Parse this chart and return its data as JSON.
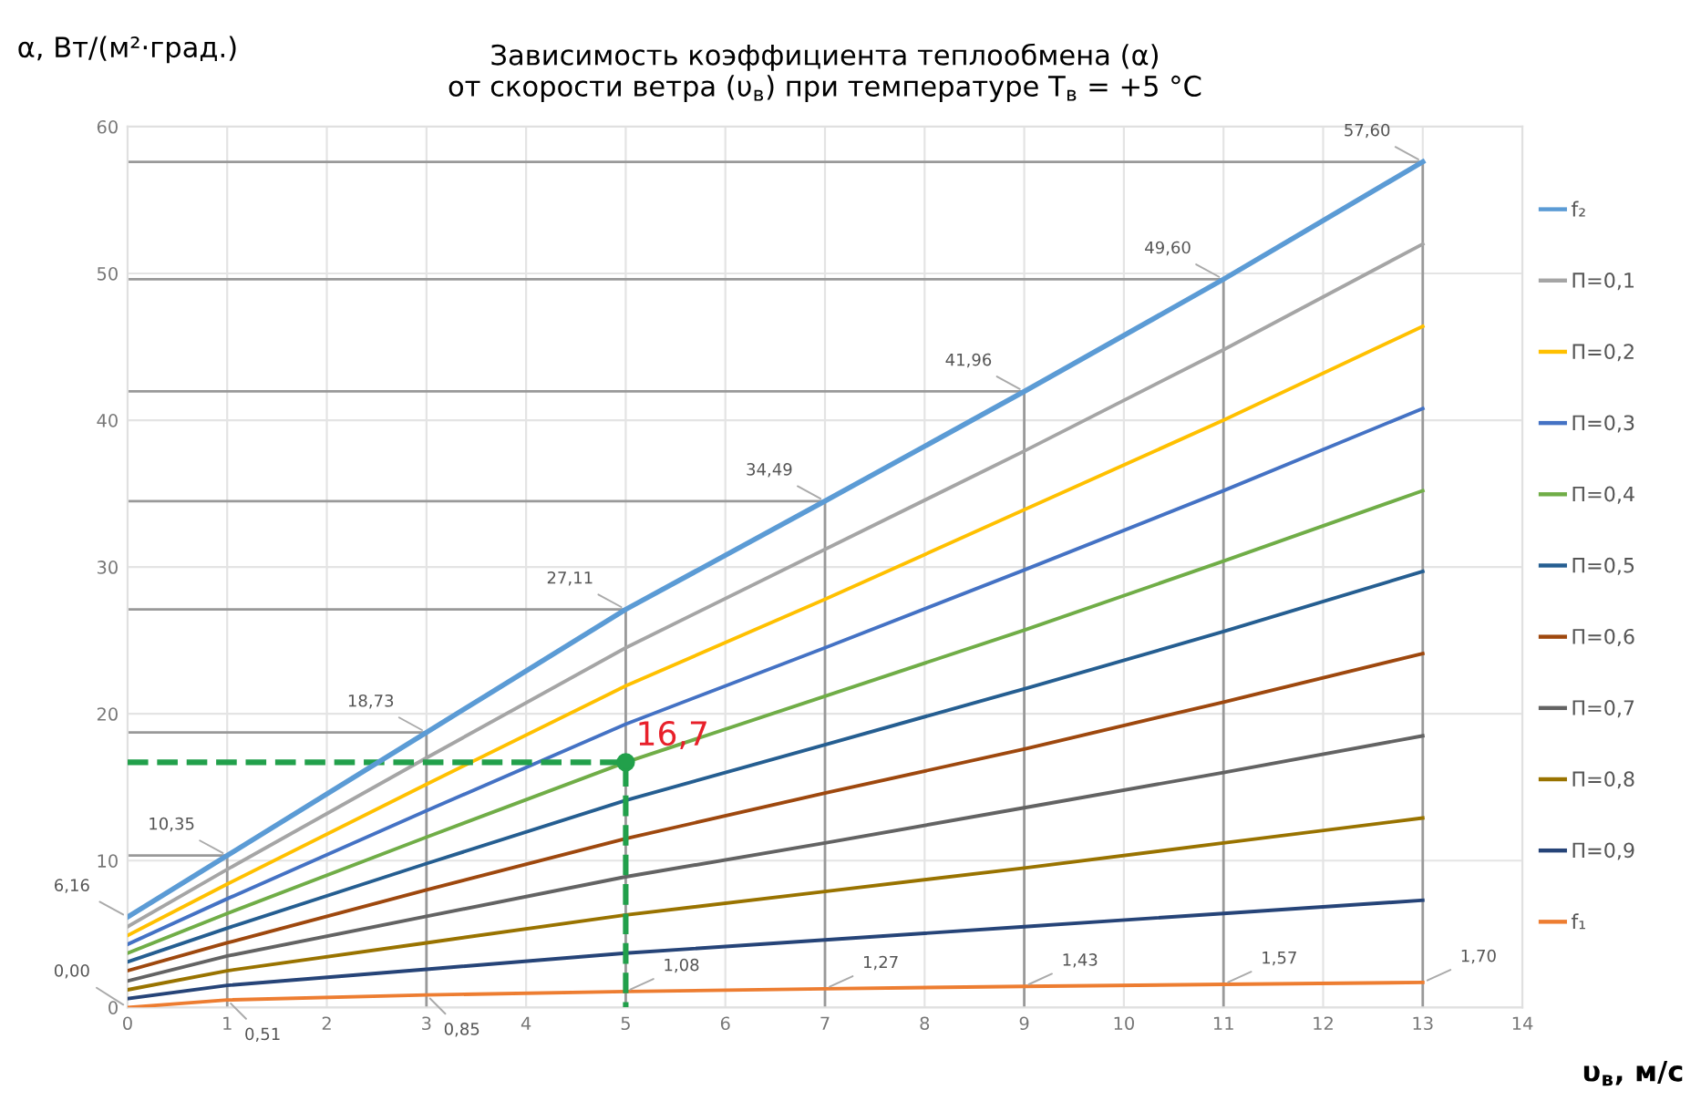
{
  "chart_data": {
    "type": "line",
    "title": "Зависимость коэффициента теплообмена (α)\nот скорости ветра (υ$_{в}$) при температуре T$_{в}$ = +5 °C",
    "ylabel": "α, Вт/(м²·град.)",
    "xlabel": "υ$_{в}$, м/с",
    "x": [
      0,
      1,
      3,
      5,
      7,
      9,
      11,
      13
    ],
    "xlim": [
      0,
      14
    ],
    "xticks": [
      0,
      1,
      2,
      3,
      4,
      5,
      6,
      7,
      8,
      9,
      10,
      11,
      12,
      13,
      14
    ],
    "ylim": [
      0,
      60
    ],
    "yticks": [
      0,
      10,
      20,
      30,
      40,
      50,
      60
    ],
    "grid": true,
    "legend": "right",
    "marker": "none",
    "line_style": "solid",
    "series": [
      {
        "name": "f₂",
        "color": "#5b9bd5",
        "values": [
          6.16,
          10.35,
          18.73,
          27.11,
          34.49,
          41.96,
          49.6,
          57.6
        ],
        "value_labels": [
          "6,16",
          "10,35",
          "18,73",
          "27,11",
          "34,49",
          "41,96",
          "49,60",
          "57,60"
        ]
      },
      {
        "name": "П=0,1",
        "color": "#a5a5a5",
        "values": [
          5.5,
          9.4,
          17.0,
          24.5,
          31.2,
          37.9,
          44.8,
          52.0
        ]
      },
      {
        "name": "П=0,2",
        "color": "#ffc000",
        "values": [
          4.9,
          8.4,
          15.2,
          21.9,
          27.8,
          33.9,
          40.0,
          46.4
        ]
      },
      {
        "name": "П=0,3",
        "color": "#4472c4",
        "values": [
          4.3,
          7.4,
          13.4,
          19.3,
          24.5,
          29.8,
          35.2,
          40.8
        ]
      },
      {
        "name": "П=0,4",
        "color": "#70ad47",
        "values": [
          3.7,
          6.4,
          11.6,
          16.7,
          21.2,
          25.7,
          30.4,
          35.2
        ]
      },
      {
        "name": "П=0,5",
        "color": "#255e91",
        "values": [
          3.1,
          5.4,
          9.8,
          14.1,
          17.9,
          21.7,
          25.6,
          29.7
        ]
      },
      {
        "name": "П=0,6",
        "color": "#9e480e",
        "values": [
          2.5,
          4.4,
          8.0,
          11.5,
          14.6,
          17.6,
          20.8,
          24.1
        ]
      },
      {
        "name": "П=0,7",
        "color": "#636363",
        "values": [
          1.8,
          3.5,
          6.2,
          8.9,
          11.2,
          13.6,
          16.0,
          18.5
        ]
      },
      {
        "name": "П=0,8",
        "color": "#997300",
        "values": [
          1.2,
          2.5,
          4.4,
          6.3,
          7.9,
          9.5,
          11.2,
          12.9
        ]
      },
      {
        "name": "П=0,9",
        "color": "#264478",
        "values": [
          0.6,
          1.5,
          2.6,
          3.7,
          4.6,
          5.5,
          6.4,
          7.3
        ]
      },
      {
        "name": "f₁",
        "color": "#ed7d31",
        "values": [
          0.0,
          0.51,
          0.85,
          1.08,
          1.27,
          1.43,
          1.57,
          1.7
        ],
        "value_labels": [
          "0,00",
          "0,51",
          "0,85",
          "1,08",
          "1,27",
          "1,43",
          "1,57",
          "1,70"
        ]
      },
      {
        "color": "#22a04b",
        "x": [
          0,
          5,
          5
        ],
        "values": [
          16.7,
          16.7,
          0
        ],
        "line_style": "dashed"
      },
      {
        "type": "scatter",
        "color": "#22a04b",
        "x": [
          5
        ],
        "values": [
          16.7
        ],
        "marker": "circle"
      },
      {
        "color": "#999999",
        "x": [
          0,
          1,
          1
        ],
        "values": [
          10.35,
          10.35,
          0
        ]
      },
      {
        "color": "#999999",
        "x": [
          0,
          3,
          3
        ],
        "values": [
          18.73,
          18.73,
          0
        ]
      },
      {
        "color": "#999999",
        "x": [
          0,
          5,
          5
        ],
        "values": [
          27.11,
          27.11,
          0
        ]
      },
      {
        "color": "#999999",
        "x": [
          0,
          7,
          7
        ],
        "values": [
          34.49,
          34.49,
          0
        ]
      },
      {
        "color": "#999999",
        "x": [
          0,
          9,
          9
        ],
        "values": [
          41.96,
          41.96,
          0
        ]
      },
      {
        "color": "#999999",
        "x": [
          0,
          11,
          11
        ],
        "values": [
          49.6,
          49.6,
          0
        ]
      },
      {
        "color": "#999999",
        "x": [
          0,
          13,
          13
        ],
        "values": [
          57.6,
          57.6,
          0
        ]
      }
    ],
    "annotations": [
      {
        "text": "16,7",
        "x": 5,
        "y": 16.7
      }
    ]
  }
}
